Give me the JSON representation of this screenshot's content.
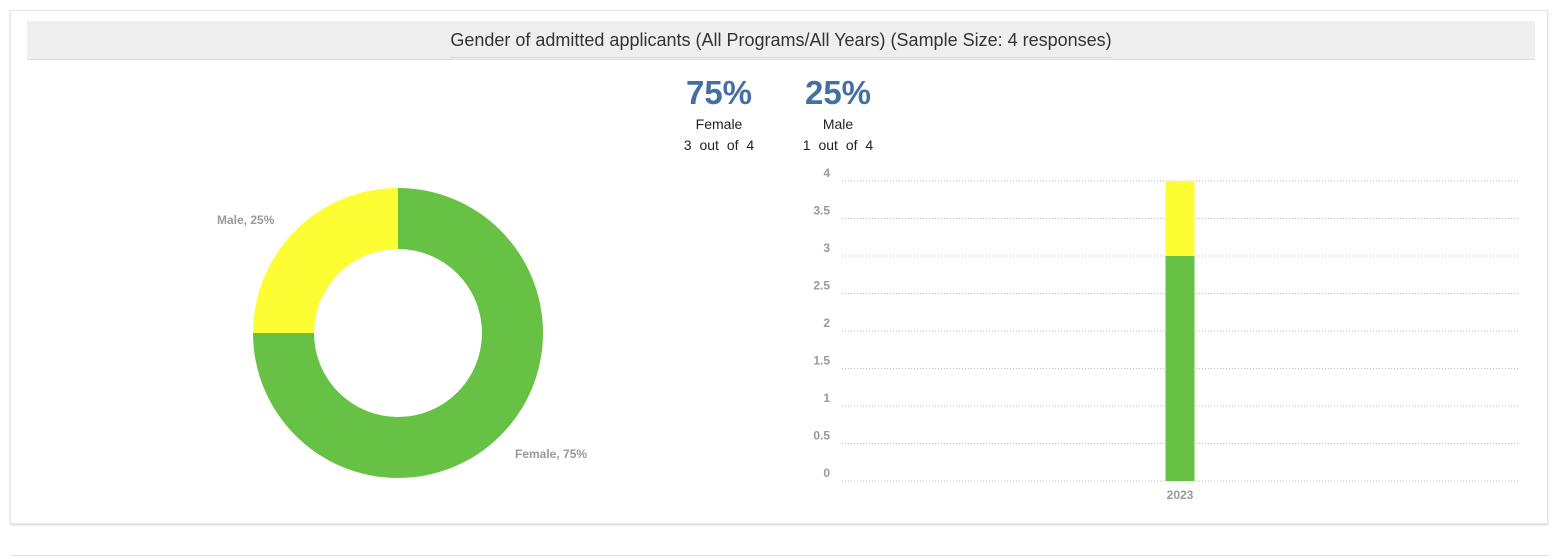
{
  "title": "Gender of admitted applicants (All Programs/All Years) (Sample Size: 4 responses)",
  "colors": {
    "female": "#66c144",
    "male": "#fdfd33",
    "stat_pct": "#456fa3"
  },
  "stats": [
    {
      "percent": "75%",
      "label": "Female",
      "count": "3 out of 4"
    },
    {
      "percent": "25%",
      "label": "Male",
      "count": "1 out of 4"
    }
  ],
  "chart_data": [
    {
      "type": "pie",
      "variant": "donut",
      "slices": [
        {
          "label": "Female",
          "value": 75,
          "data_label": "Female, 75%"
        },
        {
          "label": "Male",
          "value": 25,
          "data_label": "Male, 25%"
        }
      ]
    },
    {
      "type": "bar",
      "stacked": true,
      "categories": [
        "2023"
      ],
      "series": [
        {
          "name": "Female",
          "values": [
            3
          ]
        },
        {
          "name": "Male",
          "values": [
            1
          ]
        }
      ],
      "ylim": [
        0,
        4
      ],
      "yticks": [
        "0",
        "0.5",
        "1",
        "1.5",
        "2",
        "2.5",
        "3",
        "3.5",
        "4"
      ],
      "grid": true,
      "legend": "none"
    }
  ]
}
